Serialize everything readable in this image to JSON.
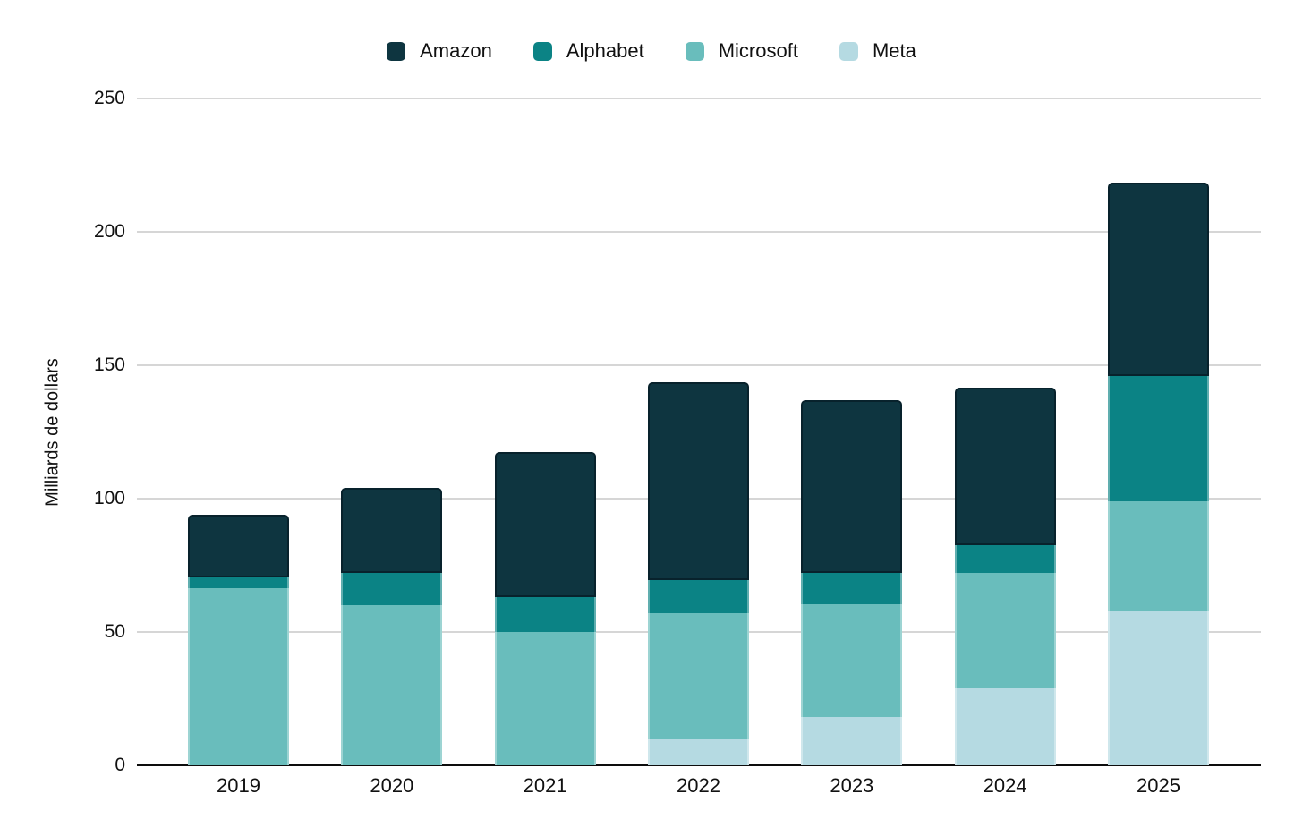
{
  "chart_data": {
    "type": "bar",
    "stacked": true,
    "title": "",
    "xlabel": "",
    "ylabel": "Milliards de dollars",
    "ylim": [
      0,
      250
    ],
    "yticks": [
      0,
      50,
      100,
      150,
      200,
      250
    ],
    "grid": true,
    "legend_position": "top",
    "legend_order": [
      "Amazon",
      "Alphabet",
      "Microsoft",
      "Meta"
    ],
    "categories": [
      "2019",
      "2020",
      "2021",
      "2022",
      "2023",
      "2024",
      "2025"
    ],
    "series": [
      {
        "name": "Meta",
        "color": "#b5dae2",
        "values": [
          0,
          0,
          0,
          10,
          18,
          29,
          58
        ]
      },
      {
        "name": "Microsoft",
        "color": "#69bdbc",
        "values": [
          66.5,
          60,
          50,
          47,
          42.5,
          43,
          41
        ]
      },
      {
        "name": "Alphabet",
        "color": "#0b8385",
        "values": [
          4,
          12,
          13,
          12.5,
          11.5,
          10.5,
          47
        ]
      },
      {
        "name": "Amazon",
        "color": "#0e3540",
        "values": [
          23.5,
          32,
          54.5,
          74,
          65,
          59,
          72.5
        ]
      }
    ],
    "stacking_order_bottom_to_top": [
      "Meta",
      "Microsoft",
      "Alphabet",
      "Amazon"
    ],
    "totals": [
      94,
      104,
      117.5,
      143.5,
      137,
      141.5,
      218.5
    ]
  },
  "colors": {
    "gridline": "#d6d6d6",
    "axis": "#0d0d0d",
    "text": "#111111",
    "background": "#ffffff"
  }
}
